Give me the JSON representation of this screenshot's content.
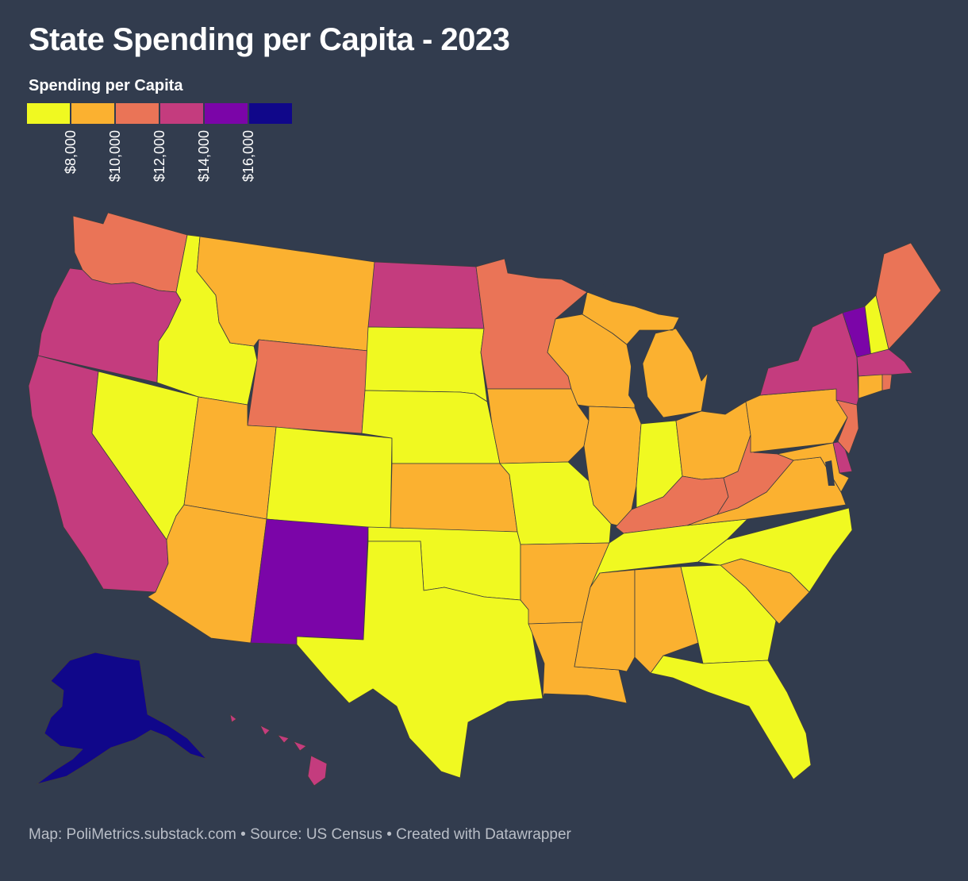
{
  "title": "State Spending per Capita - 2023",
  "legend": {
    "title": "Spending per Capita",
    "colors": [
      "#f0f921",
      "#fbb130",
      "#ea7457",
      "#c43c7e",
      "#7b05a8",
      "#10078a"
    ],
    "ticks": [
      "$8,000",
      "$10,000",
      "$12,000",
      "$14,000",
      "$16,000"
    ]
  },
  "footer": {
    "text": "Map: PoliMetrics.substack.com • Source: US Census • Created with Datawrapper"
  },
  "states": {
    "WA": "#ea7457",
    "OR": "#c43c7e",
    "CA": "#c43c7e",
    "ID": "#f0f921",
    "NV": "#f0f921",
    "MT": "#fbb130",
    "WY": "#ea7457",
    "UT": "#fbb130",
    "AZ": "#fbb130",
    "CO": "#f0f921",
    "NM": "#7b05a8",
    "ND": "#c43c7e",
    "SD": "#f0f921",
    "NE": "#f0f921",
    "KS": "#fbb130",
    "OK": "#f0f921",
    "TX": "#f0f921",
    "MN": "#ea7457",
    "IA": "#fbb130",
    "MO": "#f0f921",
    "AR": "#fbb130",
    "LA": "#fbb130",
    "WI": "#fbb130",
    "IL": "#fbb130",
    "MI": "#fbb130",
    "IN": "#f0f921",
    "OH": "#fbb130",
    "KY": "#ea7457",
    "TN": "#f0f921",
    "MS": "#fbb130",
    "AL": "#fbb130",
    "GA": "#f0f921",
    "FL": "#f0f921",
    "SC": "#fbb130",
    "NC": "#f0f921",
    "VA": "#fbb130",
    "WV": "#ea7457",
    "PA": "#fbb130",
    "NY": "#c43c7e",
    "VT": "#7b05a8",
    "NH": "#f0f921",
    "ME": "#ea7457",
    "MA": "#c43c7e",
    "CT": "#fbb130",
    "RI": "#ea7457",
    "NJ": "#ea7457",
    "DE": "#c43c7e",
    "MD": "#fbb130",
    "AK": "#10078a",
    "HI": "#c43c7e"
  }
}
